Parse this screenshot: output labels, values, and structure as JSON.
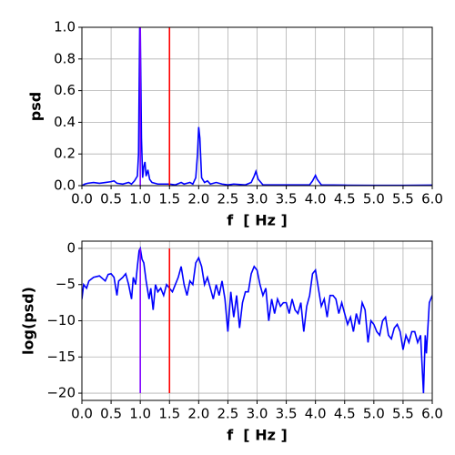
{
  "chart_data": [
    {
      "type": "line",
      "ylabel": "psd",
      "xlabel": "f  [ Hz ]",
      "grid": true,
      "xlim": [
        0,
        6
      ],
      "ylim": [
        0,
        1
      ],
      "xticks": [
        {
          "value": 0,
          "label": "0.0"
        },
        {
          "value": 0.5,
          "label": "0.5"
        },
        {
          "value": 1,
          "label": "1.0"
        },
        {
          "value": 1.5,
          "label": "1.5"
        },
        {
          "value": 2,
          "label": "2.0"
        },
        {
          "value": 2.5,
          "label": "2.5"
        },
        {
          "value": 3,
          "label": "3.0"
        },
        {
          "value": 3.5,
          "label": "3.5"
        },
        {
          "value": 4,
          "label": "4.0"
        },
        {
          "value": 4.5,
          "label": "4.5"
        },
        {
          "value": 5,
          "label": "5.0"
        },
        {
          "value": 5.5,
          "label": "5.5"
        },
        {
          "value": 6,
          "label": "6.0"
        }
      ],
      "yticks": [
        {
          "value": 0,
          "label": "0.0"
        },
        {
          "value": 0.2,
          "label": "0.2"
        },
        {
          "value": 0.4,
          "label": "0.4"
        },
        {
          "value": 0.6,
          "label": "0.6"
        },
        {
          "value": 0.8,
          "label": "0.8"
        },
        {
          "value": 1,
          "label": "1.0"
        }
      ],
      "series": [
        {
          "color": "#0000ff",
          "x": [
            0,
            0.05,
            0.1,
            0.2,
            0.3,
            0.4,
            0.5,
            0.55,
            0.6,
            0.7,
            0.8,
            0.85,
            0.9,
            0.95,
            0.97,
            0.99,
            1.0,
            1.02,
            1.04,
            1.06,
            1.08,
            1.1,
            1.13,
            1.16,
            1.2,
            1.3,
            1.4,
            1.5,
            1.6,
            1.7,
            1.75,
            1.85,
            1.9,
            1.95,
            1.98,
            2.0,
            2.02,
            2.05,
            2.1,
            2.15,
            2.2,
            2.3,
            2.4,
            2.5,
            2.6,
            2.8,
            2.9,
            2.95,
            2.98,
            3.02,
            3.1,
            3.3,
            3.5,
            3.7,
            3.9,
            3.95,
            4.0,
            4.03,
            4.1,
            4.5,
            5.0,
            5.5,
            6.0
          ],
          "values": [
            0,
            0.01,
            0.015,
            0.02,
            0.015,
            0.02,
            0.025,
            0.03,
            0.015,
            0.01,
            0.02,
            0.01,
            0.03,
            0.06,
            0.2,
            1.0,
            1.0,
            0.3,
            0.05,
            0.12,
            0.15,
            0.06,
            0.1,
            0.04,
            0.02,
            0.01,
            0.01,
            0.01,
            0.005,
            0.02,
            0.01,
            0.02,
            0.01,
            0.05,
            0.2,
            0.37,
            0.3,
            0.05,
            0.02,
            0.03,
            0.01,
            0.02,
            0.01,
            0.005,
            0.01,
            0.005,
            0.02,
            0.06,
            0.09,
            0.04,
            0.005,
            0.005,
            0.005,
            0.005,
            0.005,
            0.03,
            0.065,
            0.04,
            0.005,
            0.003,
            0.002,
            0.002,
            0.003
          ]
        },
        {
          "color": "#8000ff",
          "x": [
            1,
            1
          ],
          "values": [
            0,
            1
          ]
        },
        {
          "color": "#ff0000",
          "x": [
            1.5,
            1.5
          ],
          "values": [
            0,
            1
          ]
        }
      ]
    },
    {
      "type": "line",
      "ylabel": "log(psd)",
      "xlabel": "f  [ Hz ]",
      "grid": true,
      "xlim": [
        0,
        6
      ],
      "ylim": [
        -21,
        1
      ],
      "xticks": [
        {
          "value": 0,
          "label": "0.0"
        },
        {
          "value": 0.5,
          "label": "0.5"
        },
        {
          "value": 1,
          "label": "1.0"
        },
        {
          "value": 1.5,
          "label": "1.5"
        },
        {
          "value": 2,
          "label": "2.0"
        },
        {
          "value": 2.5,
          "label": "2.5"
        },
        {
          "value": 3,
          "label": "3.0"
        },
        {
          "value": 3.5,
          "label": "3.5"
        },
        {
          "value": 4,
          "label": "4.0"
        },
        {
          "value": 4.5,
          "label": "4.5"
        },
        {
          "value": 5,
          "label": "5.0"
        },
        {
          "value": 5.5,
          "label": "5.5"
        },
        {
          "value": 6,
          "label": "6.0"
        }
      ],
      "yticks": [
        0,
        {
          "value": -5,
          "label": "−5"
        },
        {
          "value": -10,
          "label": "−10"
        },
        {
          "value": -15,
          "label": "−15"
        },
        {
          "value": -20,
          "label": "−20"
        }
      ],
      "series": [
        {
          "color": "#0000ff",
          "x": [
            0,
            0.03,
            0.08,
            0.12,
            0.2,
            0.3,
            0.4,
            0.45,
            0.5,
            0.55,
            0.6,
            0.63,
            0.7,
            0.75,
            0.8,
            0.85,
            0.88,
            0.92,
            0.95,
            0.98,
            1.0,
            1.03,
            1.06,
            1.1,
            1.15,
            1.18,
            1.22,
            1.26,
            1.3,
            1.35,
            1.4,
            1.45,
            1.5,
            1.55,
            1.6,
            1.65,
            1.7,
            1.75,
            1.8,
            1.85,
            1.9,
            1.95,
            2.0,
            2.05,
            2.1,
            2.15,
            2.2,
            2.25,
            2.3,
            2.35,
            2.4,
            2.45,
            2.5,
            2.55,
            2.6,
            2.65,
            2.7,
            2.75,
            2.8,
            2.85,
            2.9,
            2.95,
            3.0,
            3.05,
            3.1,
            3.15,
            3.2,
            3.25,
            3.3,
            3.35,
            3.4,
            3.45,
            3.5,
            3.55,
            3.6,
            3.65,
            3.7,
            3.75,
            3.8,
            3.85,
            3.9,
            3.95,
            4.0,
            4.05,
            4.1,
            4.15,
            4.2,
            4.25,
            4.3,
            4.35,
            4.4,
            4.45,
            4.5,
            4.55,
            4.6,
            4.65,
            4.7,
            4.75,
            4.8,
            4.85,
            4.9,
            4.95,
            5.0,
            5.05,
            5.1,
            5.15,
            5.2,
            5.25,
            5.3,
            5.35,
            5.4,
            5.45,
            5.5,
            5.55,
            5.6,
            5.65,
            5.7,
            5.75,
            5.8,
            5.85,
            5.88,
            5.9,
            5.95,
            6.0
          ],
          "values": [
            -7,
            -5,
            -5.5,
            -4.5,
            -4,
            -3.8,
            -4.5,
            -3.6,
            -3.5,
            -4,
            -6.5,
            -4.5,
            -4,
            -3.5,
            -5,
            -7,
            -4,
            -5,
            -2.5,
            -0.3,
            0,
            -1.5,
            -2,
            -4.5,
            -7,
            -5.5,
            -8.5,
            -5,
            -6,
            -5.5,
            -6.5,
            -5,
            -5.5,
            -6,
            -5,
            -4,
            -2.5,
            -5,
            -6.5,
            -4.5,
            -5,
            -2,
            -1.3,
            -2.5,
            -5,
            -4,
            -5.5,
            -7,
            -5,
            -6.5,
            -4.5,
            -7,
            -11.5,
            -6,
            -9.5,
            -6.5,
            -11,
            -7.5,
            -6,
            -6,
            -3.5,
            -2.5,
            -3,
            -5,
            -6.5,
            -5.5,
            -10,
            -7,
            -9,
            -7,
            -8,
            -7.5,
            -7.5,
            -9,
            -7,
            -8.5,
            -9,
            -7.5,
            -11.5,
            -8,
            -6.5,
            -3.5,
            -3,
            -5.5,
            -8,
            -7,
            -9.5,
            -6.5,
            -6.5,
            -7,
            -9,
            -7.5,
            -9,
            -10.5,
            -9.5,
            -11.5,
            -9,
            -10.5,
            -7.5,
            -8.5,
            -13,
            -10,
            -10.5,
            -11.5,
            -12,
            -10,
            -9.5,
            -12,
            -12.5,
            -11,
            -10.5,
            -11.5,
            -14,
            -12,
            -13,
            -11.5,
            -11.5,
            -13,
            -12,
            -20,
            -12,
            -14.5,
            -7.5,
            -6.5
          ]
        },
        {
          "color": "#8000ff",
          "x": [
            1,
            1
          ],
          "values": [
            -20,
            0
          ]
        },
        {
          "color": "#ff0000",
          "x": [
            1.5,
            1.5
          ],
          "values": [
            -20,
            0
          ]
        }
      ]
    }
  ]
}
